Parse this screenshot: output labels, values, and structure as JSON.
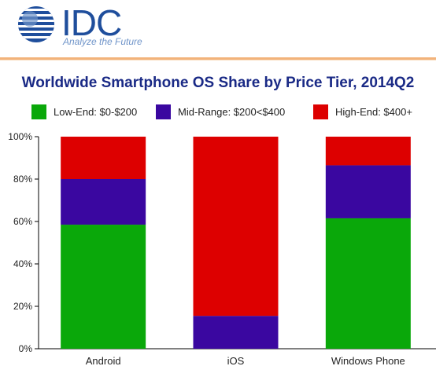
{
  "brand": {
    "name": "IDC",
    "tagline": "Analyze the Future",
    "color": "#1f4e9c"
  },
  "chart_data": {
    "type": "bar",
    "stacked": true,
    "title": "Worldwide Smartphone OS Share by Price Tier, 2014Q2",
    "xlabel": "",
    "ylabel": "",
    "categories": [
      "Android",
      "iOS",
      "Windows Phone"
    ],
    "series": [
      {
        "name": "Low-End: $0-$200",
        "color": "#0aa80a",
        "values": [
          58.5,
          0,
          61.5
        ]
      },
      {
        "name": "Mid-Range: $200<$400",
        "color": "#3a07a0",
        "values": [
          21.5,
          15.5,
          25
        ]
      },
      {
        "name": "High-End: $400+",
        "color": "#dd0000",
        "values": [
          20,
          84.5,
          13.5
        ]
      }
    ],
    "ylim": [
      0,
      100
    ],
    "yticks": [
      "0%",
      "20%",
      "40%",
      "60%",
      "80%",
      "100%"
    ],
    "grid": false,
    "legend_position": "top"
  }
}
